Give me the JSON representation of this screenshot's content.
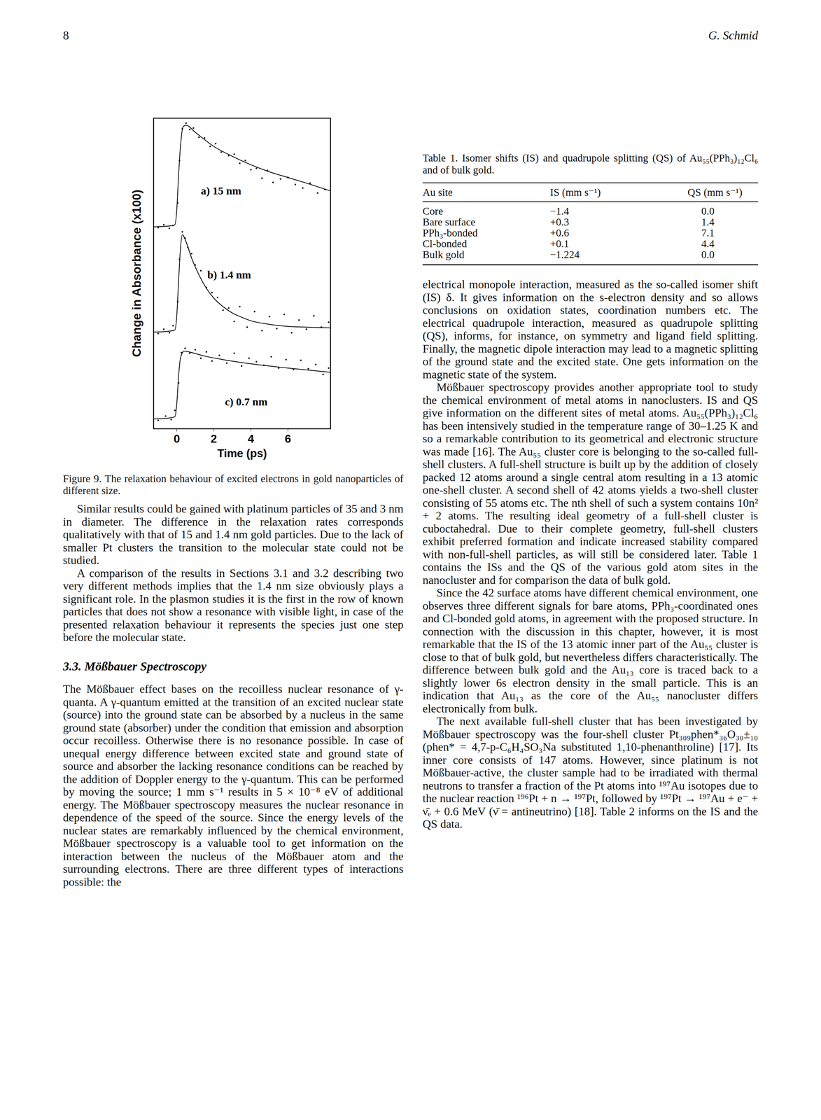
{
  "header": {
    "page": "8",
    "author": "G. Schmid"
  },
  "chart_data": {
    "type": "line",
    "x_label": "Time (ps)",
    "y_label": "Change in Absorbance (x100)",
    "xlim": [
      -1.25,
      8.3
    ],
    "xticks": [
      0,
      2,
      4,
      6
    ],
    "ylim": [
      0,
      44
    ],
    "tick_labels": "x",
    "grid": false,
    "series": [
      {
        "name": "a) 15 nm",
        "color": "#000000",
        "label_x": 1.3,
        "label_y": 33.7,
        "x": [
          -1.25,
          -0.5,
          -0.1,
          0,
          0.1,
          0.2,
          0.35,
          0.5,
          1,
          2,
          3,
          4,
          5,
          6,
          7,
          8.3
        ],
        "values": [
          28.6,
          28.7,
          28.9,
          31,
          36,
          40,
          42.8,
          43,
          42,
          40,
          38.6,
          37.4,
          36.4,
          35.6,
          34.8,
          33.7
        ],
        "scatter_x": [
          -1.0,
          -0.7,
          -0.4,
          -0.2,
          0.05,
          0.15,
          0.3,
          0.5,
          0.7,
          0.9,
          1.2,
          1.5,
          1.8,
          2.1,
          2.4,
          2.8,
          3.1,
          3.4,
          3.7,
          4.0,
          4.3,
          4.6,
          4.9,
          5.2,
          5.6,
          6.0,
          6.4,
          6.8,
          7.2,
          7.6,
          8.0
        ],
        "scatter_y": [
          28.5,
          28.9,
          28.4,
          28.8,
          32,
          38,
          42.5,
          43.3,
          42.4,
          42.6,
          41.3,
          41.2,
          40.0,
          40.4,
          39.2,
          38.7,
          38.9,
          37.6,
          38.0,
          36.7,
          36.9,
          35.5,
          36.6,
          34.9,
          35.4,
          35.6,
          34.6,
          34.1,
          34.8,
          33.4,
          33.9
        ]
      },
      {
        "name": "b) 1.4 nm",
        "color": "#000000",
        "label_x": 1.65,
        "label_y": 21.8,
        "x": [
          -1.25,
          -0.5,
          -0.1,
          0,
          0.1,
          0.2,
          0.3,
          0.5,
          0.8,
          1.2,
          1.6,
          2,
          2.5,
          3,
          3.5,
          4,
          5,
          6,
          7,
          8.3
        ],
        "values": [
          13.7,
          13.8,
          14,
          16,
          21,
          25.5,
          27.5,
          26.5,
          24.2,
          21.8,
          19.9,
          18.5,
          17.3,
          16.4,
          15.8,
          15.3,
          14.8,
          14.5,
          14.4,
          14.3
        ],
        "scatter_x": [
          -1.0,
          -0.7,
          -0.4,
          -0.2,
          0.05,
          0.15,
          0.3,
          0.45,
          0.6,
          0.8,
          1.0,
          1.3,
          1.6,
          1.9,
          2.2,
          2.5,
          2.8,
          3.1,
          3.4,
          3.8,
          4.2,
          4.6,
          5.0,
          5.4,
          5.8,
          6.2,
          6.6,
          7.0,
          7.4,
          7.8,
          8.2
        ],
        "scatter_y": [
          13.5,
          14.1,
          13.6,
          14.6,
          18,
          24,
          27.9,
          27,
          25.7,
          24.8,
          23.2,
          22.4,
          20.0,
          19.3,
          18.6,
          16.8,
          17.1,
          15.2,
          17.3,
          14.4,
          16.6,
          13.9,
          15.9,
          14.2,
          16.2,
          13.6,
          15.4,
          14.1,
          16.0,
          14.4,
          15.1
        ]
      },
      {
        "name": "c) 0.7 nm",
        "color": "#000000",
        "label_x": 2.6,
        "label_y": 3.8,
        "x": [
          -1.25,
          -0.5,
          -0.1,
          0,
          0.1,
          0.2,
          0.4,
          0.8,
          1.5,
          2.5,
          4,
          6,
          8.3
        ],
        "values": [
          1.4,
          1.5,
          1.7,
          3.5,
          7.5,
          10,
          11,
          10.8,
          10.3,
          9.8,
          9.2,
          8.6,
          8.0
        ],
        "scatter_x": [
          -1.0,
          -0.6,
          -0.3,
          -0.1,
          0.1,
          0.25,
          0.45,
          0.7,
          1.0,
          1.3,
          1.6,
          1.9,
          2.3,
          2.7,
          3.1,
          3.5,
          3.9,
          4.3,
          4.7,
          5.1,
          5.5,
          5.9,
          6.3,
          6.7,
          7.1,
          7.5,
          7.9,
          8.2
        ],
        "scatter_y": [
          1.2,
          1.8,
          1.3,
          2.6,
          6.5,
          10.8,
          11.4,
          10.7,
          11.2,
          10.0,
          10.9,
          9.6,
          10.4,
          9.3,
          10.7,
          8.9,
          10.0,
          9.5,
          9.0,
          10.2,
          8.6,
          9.8,
          8.4,
          9.7,
          8.5,
          9.1,
          7.7,
          8.6
        ]
      }
    ]
  },
  "figure_caption": "Figure 9.  The relaxation behaviour of excited electrons in gold nanoparticles of different size.",
  "left_column": [
    {
      "type": "paragraph",
      "text": "Similar results could be gained with platinum particles of 35 and 3 nm in diameter. The difference in the relaxation rates corresponds qualitatively with that of 15 and 1.4 nm gold particles. Due to the lack of smaller Pt clusters the transition to the molecular state could not be studied."
    },
    {
      "type": "paragraph",
      "text": "A comparison of the results in Sections 3.1 and 3.2 describing two very different methods implies that the 1.4 nm size obviously plays a significant role. In the plasmon studies it is the first in the row of known particles that does not show a resonance with visible light, in case of the presented relaxation behaviour it represents the species just one step before the molecular state."
    },
    {
      "type": "heading",
      "text": "3.3. Mößbauer Spectroscopy"
    },
    {
      "type": "continuation",
      "text": "The Mößbauer effect bases on the recoilless nuclear resonance of γ-quanta. A γ-quantum emitted at the transition of an excited nuclear state (source) into the ground state can be absorbed by a nucleus in the same ground state (absorber) under the condition that emission and absorption occur recoilless. Otherwise there is no resonance possible. In case of unequal energy difference between excited state and ground state of source and absorber the lacking resonance conditions can be reached by the addition of Doppler energy to the γ-quantum. This can be performed by moving the source; 1 mm s⁻¹ results in 5 × 10⁻⁸ eV of additional energy. The Mößbauer spectroscopy measures the nuclear resonance in dependence of the speed of the source. Since the energy levels of the nuclear states are remarkably influenced by the chemical environment, Mößbauer spectroscopy is a valuable tool to get information on the interaction between the nucleus of the Mößbauer atom and the surrounding electrons. There are three different types of interactions possible: the"
    }
  ],
  "table": {
    "caption": "Table 1. Isomer shifts (IS) and quadrupole splitting (QS) of Au₅₅(PPh₃)₁₂Cl₆ and of bulk gold.",
    "columns": [
      "Au site",
      "IS (mm s⁻¹)",
      "QS (mm s⁻¹)"
    ],
    "rows": [
      [
        "Core",
        "−1.4",
        "0.0"
      ],
      [
        "Bare surface",
        "+0.3",
        "1.4"
      ],
      [
        "PPh₃-bonded",
        "+0.6",
        "7.1"
      ],
      [
        "Cl-bonded",
        "+0.1",
        "4.4"
      ],
      [
        "Bulk gold",
        "−1.224",
        "0.0"
      ]
    ]
  },
  "right_column": [
    {
      "type": "continuation",
      "text": "electrical monopole interaction, measured as the so-called isomer shift (IS) δ. It gives information on the s-electron density and so allows conclusions on oxidation states, coordination numbers etc. The electrical quadrupole interaction, measured as quadrupole splitting (QS), informs, for instance, on symmetry and ligand field splitting. Finally, the magnetic dipole interaction may lead to a magnetic splitting of the ground state and the excited state. One gets information on the magnetic state of the system."
    },
    {
      "type": "paragraph",
      "text": "Mößbauer spectroscopy provides another appropriate tool to study the chemical environment of metal atoms in nanoclusters. IS and QS give information on the different sites of metal atoms. Au₅₅(PPh₃)₁₂Cl₆ has been intensively studied in the temperature range of 30–1.25 K and so a remarkable contribution to its geometrical and electronic structure was made [16]. The Au₅₅ cluster core is belonging to the so-called full-shell clusters. A full-shell structure is built up by the addition of closely packed 12 atoms around a single central atom resulting in a 13 atomic one-shell cluster. A second shell of 42 atoms yields a two-shell cluster consisting of 55 atoms etc. The nth shell of such a system contains 10n² + 2 atoms. The resulting ideal geometry of a full-shell cluster is cuboctahedral. Due to their complete geometry, full-shell clusters exhibit preferred formation and indicate increased stability compared with non-full-shell particles, as will still be considered later. Table 1 contains the ISs and the QS of the various gold atom sites in the nanocluster and for comparison the data of bulk gold."
    },
    {
      "type": "paragraph",
      "text": "Since the 42 surface atoms have different chemical environment, one observes three different signals for bare atoms, PPh₃-coordinated ones and Cl-bonded gold atoms, in agreement with the proposed structure. In connection with the discussion in this chapter, however, it is most remarkable that the IS of the 13 atomic inner part of the Au₅₅ cluster is close to that of bulk gold, but nevertheless differs characteristically. The difference between bulk gold and the Au₁₃ core is traced back to a slightly lower 6s electron density in the small particle. This is an indication that Au₁₃ as the core of the Au₅₅ nanocluster differs electronically from bulk."
    },
    {
      "type": "paragraph",
      "text": "The next available full-shell cluster that has been investigated by Mößbauer spectroscopy was the four-shell cluster Pt₃₀₉phen*₃₆O₃₀±₁₀ (phen* = 4,7-p-C₆H₄SO₃Na substituted 1,10-phenanthroline) [17]. Its inner core consists of 147 atoms. However, since platinum is not Mößbauer-active, the cluster sample had to be irradiated with thermal neutrons to transfer a fraction of the Pt atoms into ¹⁹⁷Au isotopes due to the nuclear reaction ¹⁹⁶Pt + n → ¹⁹⁷Pt, followed by ¹⁹⁷Pt → ¹⁹⁷Au + e⁻ + ν̄ₑ + 0.6 MeV (ν̄ = antineutrino) [18]. Table 2 informs on the IS and the QS data."
    }
  ]
}
